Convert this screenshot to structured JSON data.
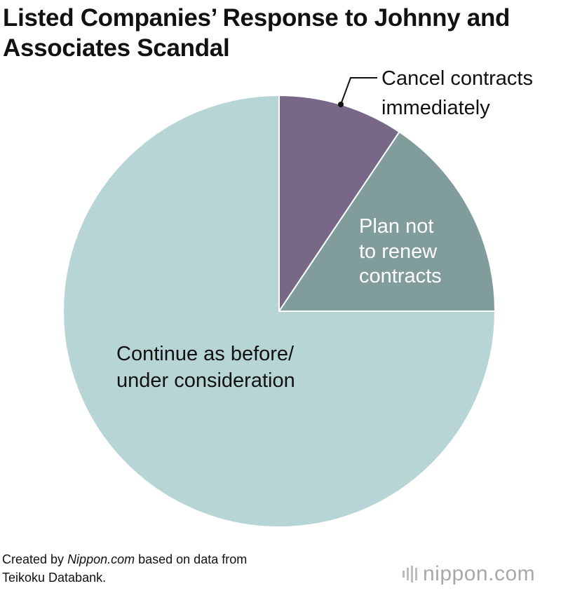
{
  "chart_data": {
    "type": "pie",
    "title": "Listed Companies’ Response to Johnny and Associates Scandal",
    "start": "12 o'clock",
    "direction": "clockwise",
    "slices": [
      {
        "label": "Cancel contracts immediately",
        "value": 9.4,
        "color": "#776887"
      },
      {
        "label": "Plan not to renew contracts",
        "value": 15.6,
        "color": "#809c9b"
      },
      {
        "label": "Continue as before/ under consideration",
        "value": 75.0,
        "color": "#b8d5d5"
      }
    ]
  },
  "labels": {
    "cancel": [
      "Cancel contracts",
      "immediately"
    ],
    "plan": [
      "Plan not",
      "to renew",
      "contracts"
    ],
    "continue": [
      "Continue as before/",
      "under consideration"
    ]
  },
  "source": {
    "prefix": "Created by ",
    "site": "Nippon.com",
    "suffix": " based on data from",
    "line2": "Teikoku Databank."
  },
  "logo": {
    "name": "nippon",
    "dot": ".",
    "tld": "com"
  }
}
